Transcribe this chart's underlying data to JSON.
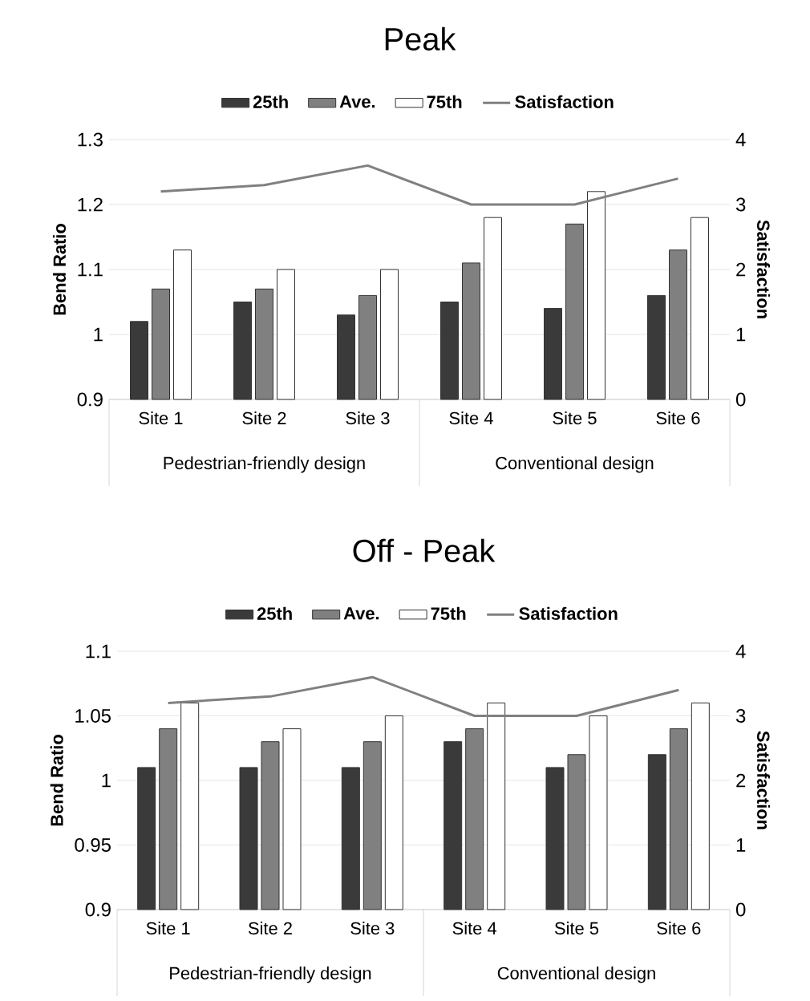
{
  "chart_data": [
    {
      "type": "bar",
      "title": "Peak",
      "ylabel": "Bend Ratio",
      "y2label": "Satisfaction",
      "categories": [
        "Site 1",
        "Site 2",
        "Site 3",
        "Site 4",
        "Site 5",
        "Site 6"
      ],
      "series": [
        {
          "name": "25th",
          "color": "#3a3a3a",
          "values": [
            1.02,
            1.05,
            1.03,
            1.05,
            1.04,
            1.06
          ]
        },
        {
          "name": "Ave.",
          "color": "#808080",
          "values": [
            1.07,
            1.07,
            1.06,
            1.11,
            1.17,
            1.13
          ]
        },
        {
          "name": "75th",
          "color": "#ffffff",
          "values": [
            1.13,
            1.1,
            1.1,
            1.18,
            1.22,
            1.18
          ]
        },
        {
          "name": "Satisfaction",
          "type": "line",
          "axis": "y2",
          "color": "#808080",
          "values": [
            3.2,
            3.3,
            3.6,
            3.0,
            3.0,
            3.4
          ]
        }
      ],
      "ylim": [
        0.9,
        1.3
      ],
      "yticks": [
        0.9,
        1,
        1.1,
        1.2,
        1.3
      ],
      "y2lim": [
        0,
        4
      ],
      "y2ticks": [
        0,
        1,
        2,
        3,
        4
      ],
      "grid": "y",
      "legend": "top",
      "annotations": [
        "Pedestrian-friendly design",
        "Conventional design"
      ]
    },
    {
      "type": "bar",
      "title": "Off - Peak",
      "ylabel": "Bend Ratio",
      "y2label": "Satisfaction",
      "categories": [
        "Site 1",
        "Site 2",
        "Site 3",
        "Site 4",
        "Site 5",
        "Site 6"
      ],
      "series": [
        {
          "name": "25th",
          "color": "#3a3a3a",
          "values": [
            1.01,
            1.01,
            1.01,
            1.03,
            1.01,
            1.02
          ]
        },
        {
          "name": "Ave.",
          "color": "#808080",
          "values": [
            1.04,
            1.03,
            1.03,
            1.04,
            1.02,
            1.04
          ]
        },
        {
          "name": "75th",
          "color": "#ffffff",
          "values": [
            1.06,
            1.04,
            1.05,
            1.06,
            1.05,
            1.06
          ]
        },
        {
          "name": "Satisfaction",
          "type": "line",
          "axis": "y2",
          "color": "#808080",
          "values": [
            3.2,
            3.3,
            3.6,
            3.0,
            3.0,
            3.4
          ]
        }
      ],
      "ylim": [
        0.9,
        1.1
      ],
      "yticks": [
        0.9,
        0.95,
        1,
        1.05,
        1.1
      ],
      "y2lim": [
        0,
        4
      ],
      "y2ticks": [
        0,
        1,
        2,
        3,
        4
      ],
      "grid": "y",
      "legend": "top",
      "annotations": [
        "Pedestrian-friendly design",
        "Conventional design"
      ]
    }
  ]
}
